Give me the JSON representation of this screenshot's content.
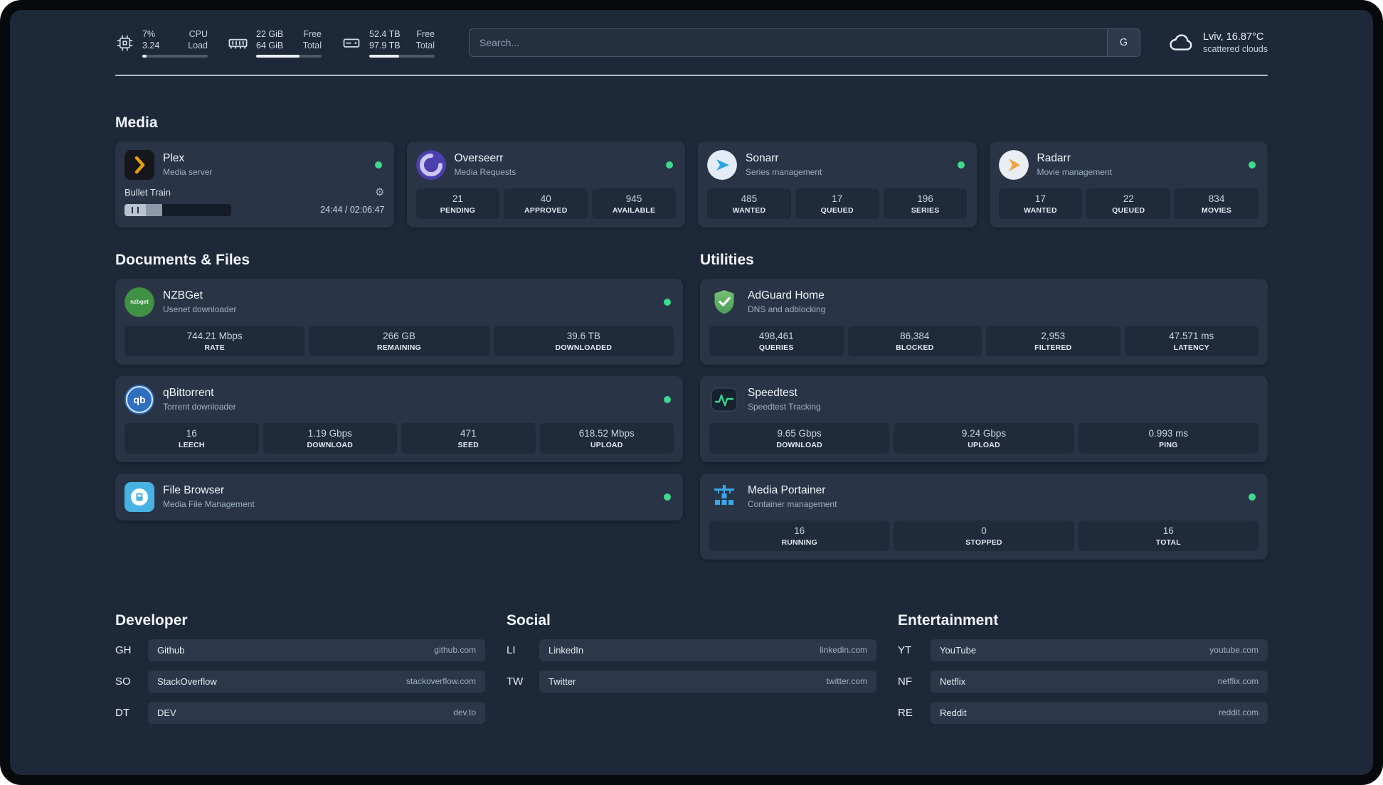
{
  "colors": {
    "background": "#1d2939",
    "card": "#293547",
    "stat_box": "#1f2a3a",
    "status_online": "#3ed98b",
    "plex_accent": "#e5a00d",
    "speedtest_accent": "#37d58e"
  },
  "icons": {
    "gear_glyph": "⚙"
  },
  "topbar": {
    "cpu": {
      "value_top": "7%",
      "label_top": "CPU",
      "value_bottom": "3.24",
      "label_bottom": "Load",
      "bar_percent": 7
    },
    "memory": {
      "value_top": "22 GiB",
      "label_top": "Free",
      "value_bottom": "64 GiB",
      "label_bottom": "Total",
      "bar_percent": 66
    },
    "disk": {
      "value_top": "52.4 TB",
      "label_top": "Free",
      "value_bottom": "97.9 TB",
      "label_bottom": "Total",
      "bar_percent": 46
    },
    "search": {
      "placeholder": "Search...",
      "provider_label": "G"
    },
    "weather": {
      "location": "Lviv, 16.87°C",
      "condition": "scattered clouds"
    }
  },
  "media": {
    "heading": "Media",
    "plex": {
      "title": "Plex",
      "subtitle": "Media server",
      "online": true,
      "player": {
        "track": "Bullet Train",
        "time": "24:44 / 02:06:47",
        "progress_percent": 19
      }
    },
    "overseerr": {
      "title": "Overseerr",
      "subtitle": "Media Requests",
      "online": true,
      "stats": [
        {
          "value": "21",
          "label": "PENDING"
        },
        {
          "value": "40",
          "label": "APPROVED"
        },
        {
          "value": "945",
          "label": "AVAILABLE"
        }
      ]
    },
    "sonarr": {
      "title": "Sonarr",
      "subtitle": "Series management",
      "online": true,
      "stats": [
        {
          "value": "485",
          "label": "WANTED"
        },
        {
          "value": "17",
          "label": "QUEUED"
        },
        {
          "value": "196",
          "label": "SERIES"
        }
      ]
    },
    "radarr": {
      "title": "Radarr",
      "subtitle": "Movie management",
      "online": true,
      "stats": [
        {
          "value": "17",
          "label": "WANTED"
        },
        {
          "value": "22",
          "label": "QUEUED"
        },
        {
          "value": "834",
          "label": "MOVIES"
        }
      ]
    }
  },
  "documents": {
    "heading": "Documents & Files",
    "nzbget": {
      "title": "NZBGet",
      "subtitle": "Usenet downloader",
      "online": true,
      "icon_text": "nzbget",
      "stats": [
        {
          "value": "744.21 Mbps",
          "label": "RATE"
        },
        {
          "value": "266 GB",
          "label": "REMAINING"
        },
        {
          "value": "39.6 TB",
          "label": "DOWNLOADED"
        }
      ]
    },
    "qbittorrent": {
      "title": "qBittorrent",
      "subtitle": "Torrent downloader",
      "online": true,
      "icon_text": "qb",
      "stats": [
        {
          "value": "16",
          "label": "LEECH"
        },
        {
          "value": "1.19 Gbps",
          "label": "DOWNLOAD"
        },
        {
          "value": "471",
          "label": "SEED"
        },
        {
          "value": "618.52 Mbps",
          "label": "UPLOAD"
        }
      ]
    },
    "filebrowser": {
      "title": "File Browser",
      "subtitle": "Media File Management",
      "online": true
    }
  },
  "utilities": {
    "heading": "Utilities",
    "adguard": {
      "title": "AdGuard Home",
      "subtitle": "DNS and adblocking",
      "stats": [
        {
          "value": "498,461",
          "label": "QUERIES"
        },
        {
          "value": "86,384",
          "label": "BLOCKED"
        },
        {
          "value": "2,953",
          "label": "FILTERED"
        },
        {
          "value": "47.571 ms",
          "label": "LATENCY"
        }
      ]
    },
    "speedtest": {
      "title": "Speedtest",
      "subtitle": "Speedtest Tracking",
      "stats": [
        {
          "value": "9.65 Gbps",
          "label": "DOWNLOAD"
        },
        {
          "value": "9.24 Gbps",
          "label": "UPLOAD"
        },
        {
          "value": "0.993 ms",
          "label": "PING"
        }
      ]
    },
    "portainer": {
      "title": "Media Portainer",
      "subtitle": "Container management",
      "online": true,
      "stats": [
        {
          "value": "16",
          "label": "RUNNING"
        },
        {
          "value": "0",
          "label": "STOPPED"
        },
        {
          "value": "16",
          "label": "TOTAL"
        }
      ]
    }
  },
  "bookmarks": {
    "developer": {
      "heading": "Developer",
      "items": [
        {
          "abbr": "GH",
          "name": "Github",
          "domain": "github.com"
        },
        {
          "abbr": "SO",
          "name": "StackOverflow",
          "domain": "stackoverflow.com"
        },
        {
          "abbr": "DT",
          "name": "DEV",
          "domain": "dev.to"
        }
      ]
    },
    "social": {
      "heading": "Social",
      "items": [
        {
          "abbr": "LI",
          "name": "LinkedIn",
          "domain": "linkedin.com"
        },
        {
          "abbr": "TW",
          "name": "Twitter",
          "domain": "twitter.com"
        }
      ]
    },
    "entertainment": {
      "heading": "Entertainment",
      "items": [
        {
          "abbr": "YT",
          "name": "YouTube",
          "domain": "youtube.com"
        },
        {
          "abbr": "NF",
          "name": "Netflix",
          "domain": "netflix.com"
        },
        {
          "abbr": "RE",
          "name": "Reddit",
          "domain": "reddit.com"
        }
      ]
    }
  }
}
